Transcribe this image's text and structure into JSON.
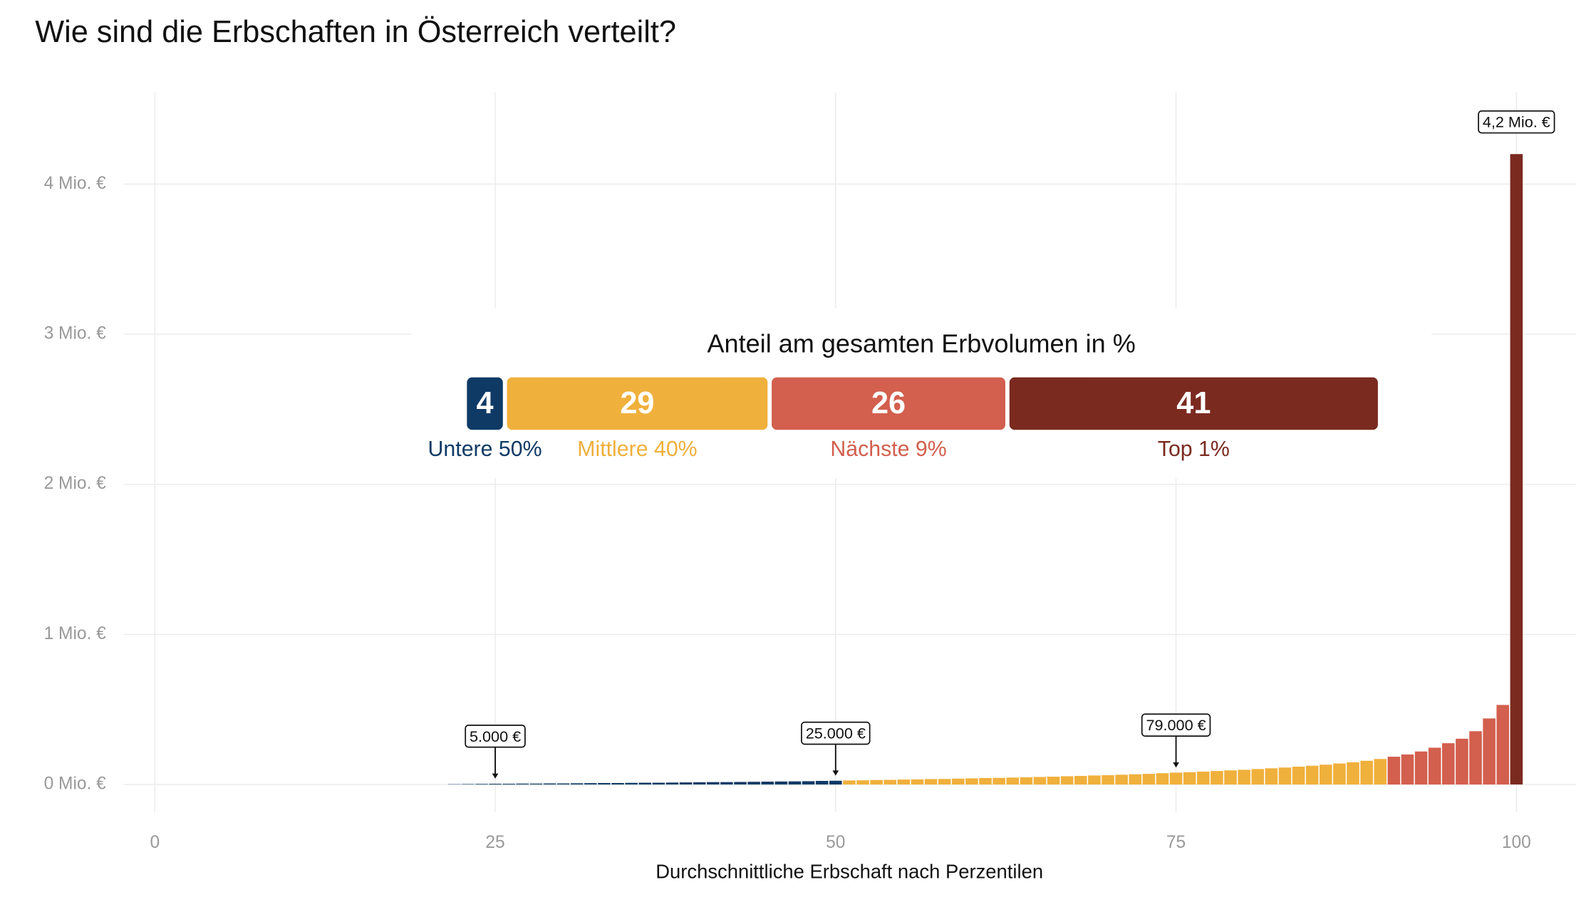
{
  "chart_data": [
    {
      "type": "bar",
      "title": "Wie sind die Erbschaften in Österreich verteilt?",
      "x_label": "Durchschnittliche Erbschaft nach Perzentilen",
      "xlim": [
        -2.3,
        104.4
      ],
      "xticks": [
        0,
        25,
        50,
        75,
        100
      ],
      "ylim": [
        -185000,
        4610000
      ],
      "yticks": [
        {
          "value": 0,
          "label": "0 Mio. €"
        },
        {
          "value": 1000000,
          "label": "1 Mio. €"
        },
        {
          "value": 2000000,
          "label": "2 Mio. €"
        },
        {
          "value": 3000000,
          "label": "3 Mio. €"
        },
        {
          "value": 4000000,
          "label": "4 Mio. €"
        }
      ],
      "grid": true,
      "series": [
        {
          "color": "#0f3a66",
          "x": [
            1,
            2,
            3,
            4,
            5,
            6,
            7,
            8,
            9,
            10,
            11,
            12,
            13,
            14,
            15,
            16,
            17,
            18,
            19,
            20,
            21,
            22,
            23,
            24,
            25,
            26,
            27,
            28,
            29,
            30,
            31,
            32,
            33,
            34,
            35,
            36,
            37,
            38,
            39,
            40,
            41,
            42,
            43,
            44,
            45,
            46,
            47,
            48,
            49,
            50
          ],
          "values": [
            0,
            0,
            0,
            0,
            0,
            0,
            0,
            0,
            0,
            0,
            0,
            0,
            0,
            0,
            0,
            0,
            0,
            0,
            0,
            0,
            0,
            2000,
            3000,
            4000,
            5000,
            5000,
            6000,
            6000,
            7000,
            7000,
            8000,
            9000,
            10000,
            10000,
            11000,
            12000,
            12000,
            13000,
            14000,
            15000,
            16000,
            16000,
            17000,
            18000,
            19000,
            20000,
            21000,
            22000,
            24000,
            25000
          ],
          "value_labels": [
            null,
            null,
            null,
            null,
            null,
            null,
            null,
            null,
            null,
            null,
            null,
            null,
            null,
            null,
            null,
            null,
            null,
            null,
            null,
            null,
            null,
            null,
            null,
            null,
            "5.000 €",
            null,
            null,
            null,
            null,
            null,
            null,
            null,
            null,
            null,
            null,
            null,
            null,
            null,
            null,
            null,
            null,
            null,
            null,
            null,
            null,
            null,
            null,
            null,
            null,
            "25.000 €"
          ]
        },
        {
          "color": "#f0b03c",
          "x": [
            51,
            52,
            53,
            54,
            55,
            56,
            57,
            58,
            59,
            60,
            61,
            62,
            63,
            64,
            65,
            66,
            67,
            68,
            69,
            70,
            71,
            72,
            73,
            74,
            75,
            76,
            77,
            78,
            79,
            80,
            81,
            82,
            83,
            84,
            85,
            86,
            87,
            88,
            89,
            90
          ],
          "values": [
            27000,
            28000,
            30000,
            31000,
            33000,
            34000,
            36000,
            37000,
            39000,
            41000,
            43000,
            44000,
            46000,
            48000,
            50000,
            52000,
            55000,
            57000,
            60000,
            62000,
            65000,
            68000,
            71000,
            75000,
            79000,
            82000,
            86000,
            90000,
            94000,
            98000,
            103000,
            108000,
            113000,
            119000,
            125000,
            132000,
            140000,
            148000,
            158000,
            170000
          ],
          "value_labels": [
            null,
            null,
            null,
            null,
            null,
            null,
            null,
            null,
            null,
            null,
            null,
            null,
            null,
            null,
            null,
            null,
            null,
            null,
            null,
            null,
            null,
            null,
            null,
            null,
            "79.000 €",
            null,
            null,
            null,
            null,
            null,
            null,
            null,
            null,
            null,
            null,
            null,
            null,
            null,
            null,
            null
          ]
        },
        {
          "color": "#d35f4e",
          "x": [
            91,
            92,
            93,
            94,
            95,
            96,
            97,
            98,
            99
          ],
          "values": [
            185000,
            200000,
            220000,
            245000,
            275000,
            305000,
            355000,
            440000,
            530000
          ]
        },
        {
          "color": "#7b2a20",
          "x": [
            100
          ],
          "values": [
            4200000
          ],
          "value_labels": [
            "4,2 Mio. €"
          ]
        }
      ]
    },
    {
      "type": "stacked-bar",
      "title": "Anteil am gesamten Erbvolumen in %",
      "categories": [
        "Untere 50%",
        "Mittlere 40%",
        "Nächste 9%",
        "Top 1%"
      ],
      "values": [
        4,
        29,
        26,
        41
      ],
      "colors": [
        "#0f3a66",
        "#f0b03c",
        "#d35f4e",
        "#7b2a20"
      ]
    }
  ]
}
